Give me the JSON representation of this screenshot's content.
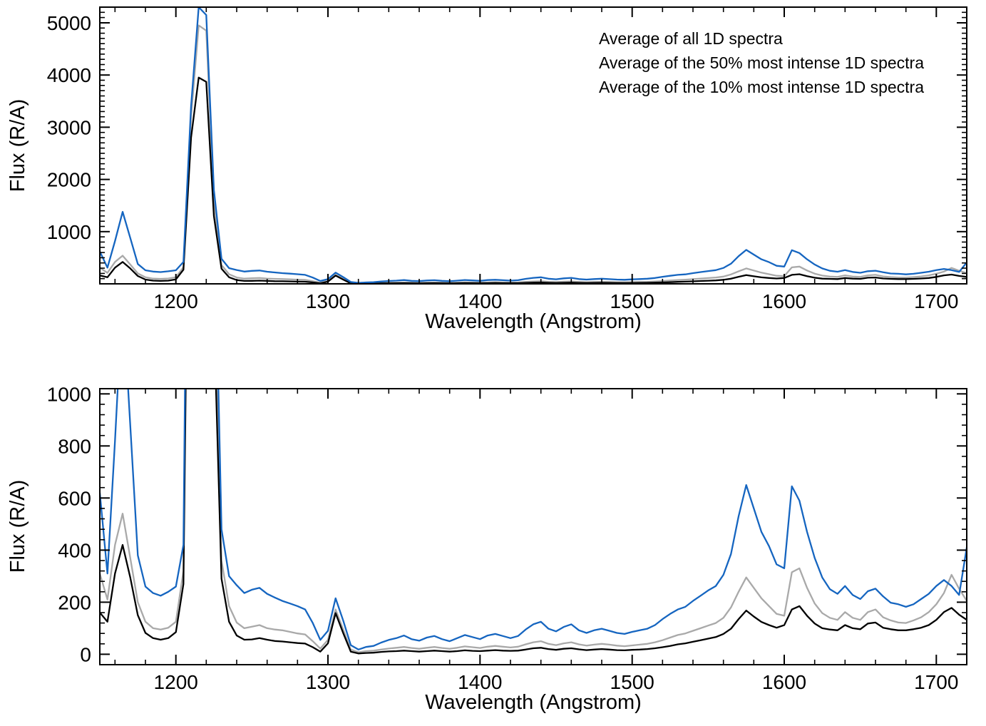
{
  "figure": {
    "background": "#ffffff",
    "axis_color": "#000000"
  },
  "chart_data": {
    "type": "line",
    "title": "",
    "xlabel": "Wavelength (Angstrom)",
    "ylabel": "Flux (R/A)",
    "xlim": [
      1150,
      1720
    ],
    "xticks": [
      1200,
      1300,
      1400,
      1500,
      1600,
      1700
    ],
    "x_minor_step": 20,
    "legend_position": "top-right",
    "grid": false,
    "x": [
      1150,
      1155,
      1160,
      1165,
      1170,
      1175,
      1180,
      1185,
      1190,
      1195,
      1200,
      1205,
      1210,
      1215,
      1220,
      1225,
      1230,
      1235,
      1240,
      1245,
      1250,
      1255,
      1260,
      1265,
      1270,
      1275,
      1280,
      1285,
      1290,
      1295,
      1300,
      1305,
      1310,
      1315,
      1320,
      1325,
      1330,
      1335,
      1340,
      1345,
      1350,
      1355,
      1360,
      1365,
      1370,
      1375,
      1380,
      1385,
      1390,
      1395,
      1400,
      1405,
      1410,
      1415,
      1420,
      1425,
      1430,
      1435,
      1440,
      1445,
      1450,
      1455,
      1460,
      1465,
      1470,
      1475,
      1480,
      1485,
      1490,
      1495,
      1500,
      1505,
      1510,
      1515,
      1520,
      1525,
      1530,
      1535,
      1540,
      1545,
      1550,
      1555,
      1560,
      1565,
      1570,
      1575,
      1580,
      1585,
      1590,
      1595,
      1600,
      1605,
      1610,
      1615,
      1620,
      1625,
      1630,
      1635,
      1640,
      1645,
      1650,
      1655,
      1660,
      1665,
      1670,
      1675,
      1680,
      1685,
      1690,
      1695,
      1700,
      1705,
      1710,
      1715,
      1720
    ],
    "series": [
      {
        "name": "Average of all 1D spectra",
        "color": "#000000",
        "values": [
          160,
          125,
          310,
          420,
          295,
          150,
          82,
          62,
          56,
          62,
          85,
          270,
          2800,
          3950,
          3870,
          1300,
          290,
          125,
          72,
          56,
          57,
          62,
          56,
          51,
          49,
          46,
          43,
          41,
          27,
          10,
          42,
          158,
          82,
          10,
          3,
          5,
          6,
          9,
          11,
          12,
          14,
          12,
          10,
          12,
          14,
          12,
          10,
          12,
          15,
          13,
          12,
          14,
          16,
          14,
          13,
          14,
          18,
          23,
          25,
          20,
          17,
          21,
          23,
          19,
          16,
          18,
          20,
          18,
          16,
          15,
          17,
          18,
          20,
          23,
          27,
          32,
          38,
          42,
          48,
          54,
          60,
          66,
          78,
          98,
          135,
          168,
          145,
          124,
          112,
          102,
          112,
          172,
          185,
          148,
          118,
          100,
          95,
          92,
          112,
          100,
          96,
          118,
          122,
          102,
          96,
          92,
          92,
          96,
          102,
          112,
          132,
          162,
          178,
          152,
          132
        ]
      },
      {
        "name": "Average of the 50% most intense 1D spectra",
        "color": "#a9a9a9",
        "values": [
          310,
          210,
          420,
          540,
          370,
          200,
          125,
          100,
          95,
          102,
          125,
          320,
          3200,
          4950,
          4850,
          1600,
          360,
          185,
          122,
          100,
          106,
          112,
          100,
          95,
          92,
          86,
          80,
          76,
          50,
          22,
          55,
          172,
          95,
          18,
          8,
          12,
          14,
          18,
          22,
          25,
          28,
          24,
          21,
          25,
          28,
          24,
          21,
          25,
          30,
          27,
          24,
          29,
          32,
          29,
          26,
          29,
          38,
          46,
          50,
          40,
          35,
          42,
          46,
          38,
          33,
          37,
          40,
          37,
          33,
          31,
          34,
          37,
          40,
          46,
          54,
          64,
          74,
          80,
          90,
          100,
          110,
          120,
          140,
          180,
          240,
          295,
          255,
          215,
          185,
          155,
          148,
          315,
          330,
          255,
          195,
          158,
          140,
          132,
          162,
          140,
          132,
          162,
          172,
          142,
          130,
          122,
          120,
          130,
          142,
          162,
          192,
          235,
          305,
          252,
          205
        ]
      },
      {
        "name": "Average of the 10% most intense 1D spectra",
        "color": "#1565c0",
        "values": [
          620,
          310,
          820,
          1380,
          880,
          380,
          260,
          235,
          225,
          240,
          260,
          420,
          3400,
          5300,
          5150,
          1800,
          480,
          300,
          265,
          235,
          248,
          255,
          232,
          218,
          205,
          195,
          185,
          172,
          120,
          55,
          90,
          215,
          130,
          35,
          18,
          28,
          32,
          45,
          55,
          62,
          72,
          58,
          52,
          64,
          70,
          58,
          50,
          62,
          74,
          66,
          58,
          72,
          78,
          70,
          62,
          70,
          95,
          115,
          125,
          98,
          88,
          105,
          115,
          92,
          82,
          92,
          98,
          90,
          82,
          78,
          86,
          92,
          98,
          112,
          135,
          155,
          172,
          182,
          205,
          225,
          245,
          262,
          305,
          385,
          530,
          650,
          560,
          470,
          415,
          345,
          330,
          645,
          590,
          470,
          370,
          295,
          250,
          232,
          262,
          228,
          212,
          242,
          252,
          222,
          198,
          192,
          182,
          192,
          212,
          232,
          262,
          285,
          262,
          228,
          410
        ]
      }
    ],
    "panels": [
      {
        "name": "full-scale",
        "ylim": [
          0,
          5300
        ],
        "yticks": [
          1000,
          2000,
          3000,
          4000,
          5000
        ],
        "y_minor_step": 100,
        "legend": true
      },
      {
        "name": "zoomed",
        "ylim": [
          -40,
          1020
        ],
        "yticks": [
          0,
          200,
          400,
          600,
          800,
          1000
        ],
        "y_minor_step": 40,
        "legend": false
      }
    ]
  }
}
